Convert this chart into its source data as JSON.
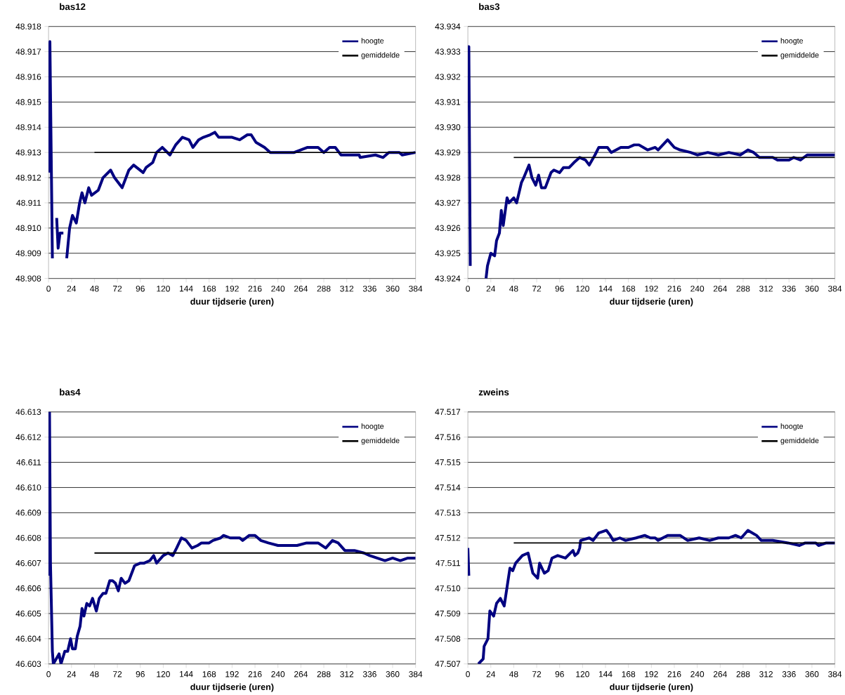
{
  "chart_data": [
    {
      "type": "line",
      "title": "bas12",
      "xlabel": "duur tijdserie (uren)",
      "xlim": [
        0,
        384
      ],
      "xticks": [
        0,
        24,
        48,
        72,
        96,
        120,
        144,
        168,
        192,
        216,
        240,
        264,
        288,
        312,
        336,
        360,
        384
      ],
      "ylim": [
        48.908,
        48.918
      ],
      "yticks": [
        {
          "value": 48.908,
          "label": "48.908"
        },
        {
          "value": 48.909,
          "label": "48.909"
        },
        {
          "value": 48.91,
          "label": "48.910"
        },
        {
          "value": 48.911,
          "label": "48.911"
        },
        {
          "value": 48.912,
          "label": "48.912"
        },
        {
          "value": 48.913,
          "label": "48.913"
        },
        {
          "value": 48.914,
          "label": "48.914"
        },
        {
          "value": 48.915,
          "label": "48.915"
        },
        {
          "value": 48.916,
          "label": "48.916"
        },
        {
          "value": 48.917,
          "label": "48.917"
        },
        {
          "value": 48.918,
          "label": "48.918"
        }
      ],
      "grid": "y",
      "legend": "top right",
      "series": [
        {
          "name": "hoogte",
          "color": "#000080",
          "x": [
            0,
            1.4,
            4,
            6.5,
            8.5,
            10,
            12,
            15.5,
            17,
            19,
            22,
            25,
            29,
            32.5,
            35,
            38,
            42,
            45,
            52,
            57,
            65,
            69,
            75,
            77,
            84,
            89,
            99,
            102,
            109,
            113,
            119,
            127,
            133,
            140,
            147,
            151,
            157,
            162,
            169,
            174,
            178,
            192,
            200,
            208,
            212,
            217,
            226,
            232,
            243,
            257,
            271,
            282,
            288,
            294,
            300,
            306,
            325,
            326,
            342,
            350,
            356,
            367,
            370,
            384
          ],
          "values": [
            48.9122,
            48.9174,
            48.9088,
            null,
            48.9104,
            48.9092,
            48.9098,
            48.9098,
            null,
            48.9088,
            48.91,
            48.9105,
            48.9102,
            48.911,
            48.9114,
            48.911,
            48.9116,
            48.9113,
            48.9115,
            48.912,
            48.9123,
            48.912,
            48.9117,
            48.9116,
            48.9123,
            48.9125,
            48.9122,
            48.9124,
            48.9126,
            48.913,
            48.9132,
            48.9129,
            48.9133,
            48.9136,
            48.9135,
            48.9132,
            48.9135,
            48.9136,
            48.9137,
            48.9138,
            48.9136,
            48.9136,
            48.9135,
            48.9137,
            48.9137,
            48.9134,
            48.9132,
            48.913,
            48.913,
            48.913,
            48.9132,
            48.9132,
            48.913,
            48.9132,
            48.9132,
            48.9129,
            48.9129,
            48.9128,
            48.9129,
            48.9128,
            48.913,
            48.913,
            48.9129,
            48.913
          ]
        },
        {
          "name": "gemiddelde",
          "color": "#000000",
          "x": [
            48,
            384
          ],
          "values": [
            48.913,
            48.913
          ]
        }
      ]
    },
    {
      "type": "line",
      "title": "bas3",
      "xlabel": "duur tijdserie (uren)",
      "xlim": [
        0,
        384
      ],
      "xticks": [
        0,
        24,
        48,
        72,
        96,
        120,
        144,
        168,
        192,
        216,
        240,
        264,
        288,
        312,
        336,
        360,
        384
      ],
      "ylim": [
        43.924,
        43.934
      ],
      "yticks": [
        {
          "value": 43.924,
          "label": "43.924"
        },
        {
          "value": 43.925,
          "label": "43.925"
        },
        {
          "value": 43.926,
          "label": "43.926"
        },
        {
          "value": 43.927,
          "label": "43.927"
        },
        {
          "value": 43.928,
          "label": "43.928"
        },
        {
          "value": 43.929,
          "label": "43.929"
        },
        {
          "value": 43.93,
          "label": "43.930"
        },
        {
          "value": 43.931,
          "label": "43.931"
        },
        {
          "value": 43.932,
          "label": "43.932"
        },
        {
          "value": 43.933,
          "label": "43.933"
        },
        {
          "value": 43.934,
          "label": "43.934"
        }
      ],
      "grid": "y",
      "legend": "top right",
      "series": [
        {
          "name": "hoogte",
          "color": "#000080",
          "x": [
            0,
            1,
            2.5,
            3.4,
            19,
            20.5,
            24,
            28,
            30,
            33,
            35,
            37,
            41,
            43,
            48,
            51,
            56,
            58.5,
            64,
            67,
            71,
            74,
            77,
            81,
            87,
            90,
            96,
            100,
            106,
            111,
            117,
            123,
            127,
            133,
            137,
            146,
            150,
            160,
            168,
            174,
            179,
            188,
            196,
            199,
            209,
            216,
            222,
            233,
            240,
            251,
            262,
            273,
            285,
            293,
            299,
            305,
            319,
            324,
            336,
            341,
            348,
            355,
            370,
            384
          ],
          "values": [
            43.9332,
            43.9332,
            43.9245,
            null,
            43.924,
            43.9245,
            43.925,
            43.9249,
            43.9255,
            43.9258,
            43.9267,
            43.9261,
            43.9272,
            43.927,
            43.9272,
            43.927,
            43.9278,
            43.928,
            43.9285,
            43.928,
            43.9277,
            43.9281,
            43.9276,
            43.9276,
            43.9282,
            43.9283,
            43.9282,
            43.9284,
            43.9284,
            43.9286,
            43.9288,
            43.9287,
            43.9285,
            43.9289,
            43.9292,
            43.9292,
            43.929,
            43.9292,
            43.9292,
            43.9293,
            43.9293,
            43.9291,
            43.9292,
            43.9291,
            43.9295,
            43.9292,
            43.9291,
            43.929,
            43.9289,
            43.929,
            43.9289,
            43.929,
            43.9289,
            43.9291,
            43.929,
            43.9288,
            43.9288,
            43.9287,
            43.9287,
            43.9288,
            43.9287,
            43.9289,
            43.9289,
            43.9289
          ]
        },
        {
          "name": "gemiddelde",
          "color": "#000000",
          "x": [
            48,
            384
          ],
          "values": [
            43.9288,
            43.9288
          ]
        }
      ]
    },
    {
      "type": "line",
      "title": "bas4",
      "xlabel": "duur tijdserie (uren)",
      "xlim": [
        0,
        384
      ],
      "xticks": [
        0,
        24,
        48,
        72,
        96,
        120,
        144,
        168,
        192,
        216,
        240,
        264,
        288,
        312,
        336,
        360,
        384
      ],
      "ylim": [
        46.603,
        46.613
      ],
      "yticks": [
        {
          "value": 46.603,
          "label": "46.603"
        },
        {
          "value": 46.604,
          "label": "46.604"
        },
        {
          "value": 46.605,
          "label": "46.605"
        },
        {
          "value": 46.606,
          "label": "46.606"
        },
        {
          "value": 46.607,
          "label": "46.607"
        },
        {
          "value": 46.608,
          "label": "46.608"
        },
        {
          "value": 46.609,
          "label": "46.609"
        },
        {
          "value": 46.61,
          "label": "46.610"
        },
        {
          "value": 46.611,
          "label": "46.611"
        },
        {
          "value": 46.612,
          "label": "46.612"
        },
        {
          "value": 46.613,
          "label": "46.613"
        }
      ],
      "grid": "y",
      "legend": "top right",
      "series": [
        {
          "name": "hoogte",
          "color": "#000080",
          "x": [
            0,
            1,
            2,
            4,
            5,
            11,
            13,
            17,
            20,
            23,
            25,
            28,
            30,
            33,
            35,
            37,
            40,
            43,
            46,
            50,
            53,
            57,
            60,
            64,
            67,
            70,
            73,
            76,
            80,
            84,
            87,
            90,
            96,
            100,
            106,
            110,
            113,
            120,
            125,
            130,
            134,
            139,
            144,
            150,
            156,
            160,
            168,
            172,
            180,
            183,
            190,
            200,
            203,
            210,
            216,
            222,
            230,
            240,
            250,
            260,
            270,
            282,
            290,
            297,
            303,
            310,
            320,
            330,
            336,
            344,
            352,
            360,
            368,
            376,
            384
          ],
          "values": [
            46.6065,
            46.613,
            46.607,
            46.6035,
            46.603,
            46.6034,
            46.603,
            46.6035,
            46.6035,
            46.604,
            46.6036,
            46.6036,
            46.6041,
            46.6045,
            46.6052,
            46.6049,
            46.6054,
            46.6053,
            46.6056,
            46.6051,
            46.6056,
            46.6058,
            46.6058,
            46.6063,
            46.6063,
            46.6062,
            46.6059,
            46.6064,
            46.6062,
            46.6063,
            46.6066,
            46.6069,
            46.607,
            46.607,
            46.6071,
            46.6073,
            46.607,
            46.6073,
            46.6074,
            46.6073,
            46.6076,
            46.608,
            46.6079,
            46.6076,
            46.6077,
            46.6078,
            46.6078,
            46.6079,
            46.608,
            46.6081,
            46.608,
            46.608,
            46.6079,
            46.6081,
            46.6081,
            46.6079,
            46.6078,
            46.6077,
            46.6077,
            46.6077,
            46.6078,
            46.6078,
            46.6076,
            46.6079,
            46.6078,
            46.6075,
            46.6075,
            46.6074,
            46.6073,
            46.6072,
            46.6071,
            46.6072,
            46.6071,
            46.6072,
            46.6072
          ]
        },
        {
          "name": "gemiddelde",
          "color": "#000000",
          "x": [
            48,
            384
          ],
          "values": [
            46.6074,
            46.6074
          ]
        }
      ]
    },
    {
      "type": "line",
      "title": "zweins",
      "xlabel": "duur tijdserie (uren)",
      "xlim": [
        0,
        384
      ],
      "xticks": [
        0,
        24,
        48,
        72,
        96,
        120,
        144,
        168,
        192,
        216,
        240,
        264,
        288,
        312,
        336,
        360,
        384
      ],
      "ylim": [
        47.507,
        47.517
      ],
      "yticks": [
        {
          "value": 47.507,
          "label": "47.507"
        },
        {
          "value": 47.508,
          "label": "47.508"
        },
        {
          "value": 47.509,
          "label": "47.509"
        },
        {
          "value": 47.51,
          "label": "47.510"
        },
        {
          "value": 47.511,
          "label": "47.511"
        },
        {
          "value": 47.512,
          "label": "47.512"
        },
        {
          "value": 47.513,
          "label": "47.513"
        },
        {
          "value": 47.514,
          "label": "47.514"
        },
        {
          "value": 47.515,
          "label": "47.515"
        },
        {
          "value": 47.516,
          "label": "47.516"
        },
        {
          "value": 47.517,
          "label": "47.517"
        }
      ],
      "grid": "y",
      "legend": "top right",
      "series": [
        {
          "name": "hoogte",
          "color": "#000080",
          "x": [
            0,
            1,
            2,
            11,
            16,
            17,
            21,
            23,
            27,
            30,
            34,
            38,
            40,
            44,
            47,
            50,
            57,
            63,
            68,
            73,
            75,
            80,
            84,
            88,
            94,
            102,
            110,
            112,
            115,
            117,
            118,
            127,
            131,
            137,
            145,
            149,
            152,
            159,
            165,
            176,
            185,
            191,
            196,
            199,
            209,
            222,
            230,
            242,
            253,
            262,
            273,
            280,
            286,
            293,
            302,
            307,
            319,
            335,
            347,
            353,
            364,
            367,
            375,
            384
          ],
          "values": [
            47.5116,
            47.5105,
            null,
            47.507,
            47.5072,
            47.5077,
            47.508,
            47.5091,
            47.5089,
            47.5094,
            47.5096,
            47.5093,
            47.5098,
            47.5108,
            47.5107,
            47.511,
            47.5113,
            47.5114,
            47.5106,
            47.5104,
            47.511,
            47.5106,
            47.5107,
            47.5112,
            47.5113,
            47.5112,
            47.5115,
            47.5113,
            47.5114,
            47.5116,
            47.5119,
            47.512,
            47.5119,
            47.5122,
            47.5123,
            47.5121,
            47.5119,
            47.512,
            47.5119,
            47.512,
            47.5121,
            47.512,
            47.512,
            47.5119,
            47.5121,
            47.5121,
            47.5119,
            47.512,
            47.5119,
            47.512,
            47.512,
            47.5121,
            47.512,
            47.5123,
            47.5121,
            47.5119,
            47.5119,
            47.5118,
            47.5117,
            47.5118,
            47.5118,
            47.5117,
            47.5118,
            47.5118
          ]
        },
        {
          "name": "gemiddelde",
          "color": "#000000",
          "x": [
            48,
            384
          ],
          "values": [
            47.5118,
            47.5118
          ]
        }
      ]
    }
  ]
}
